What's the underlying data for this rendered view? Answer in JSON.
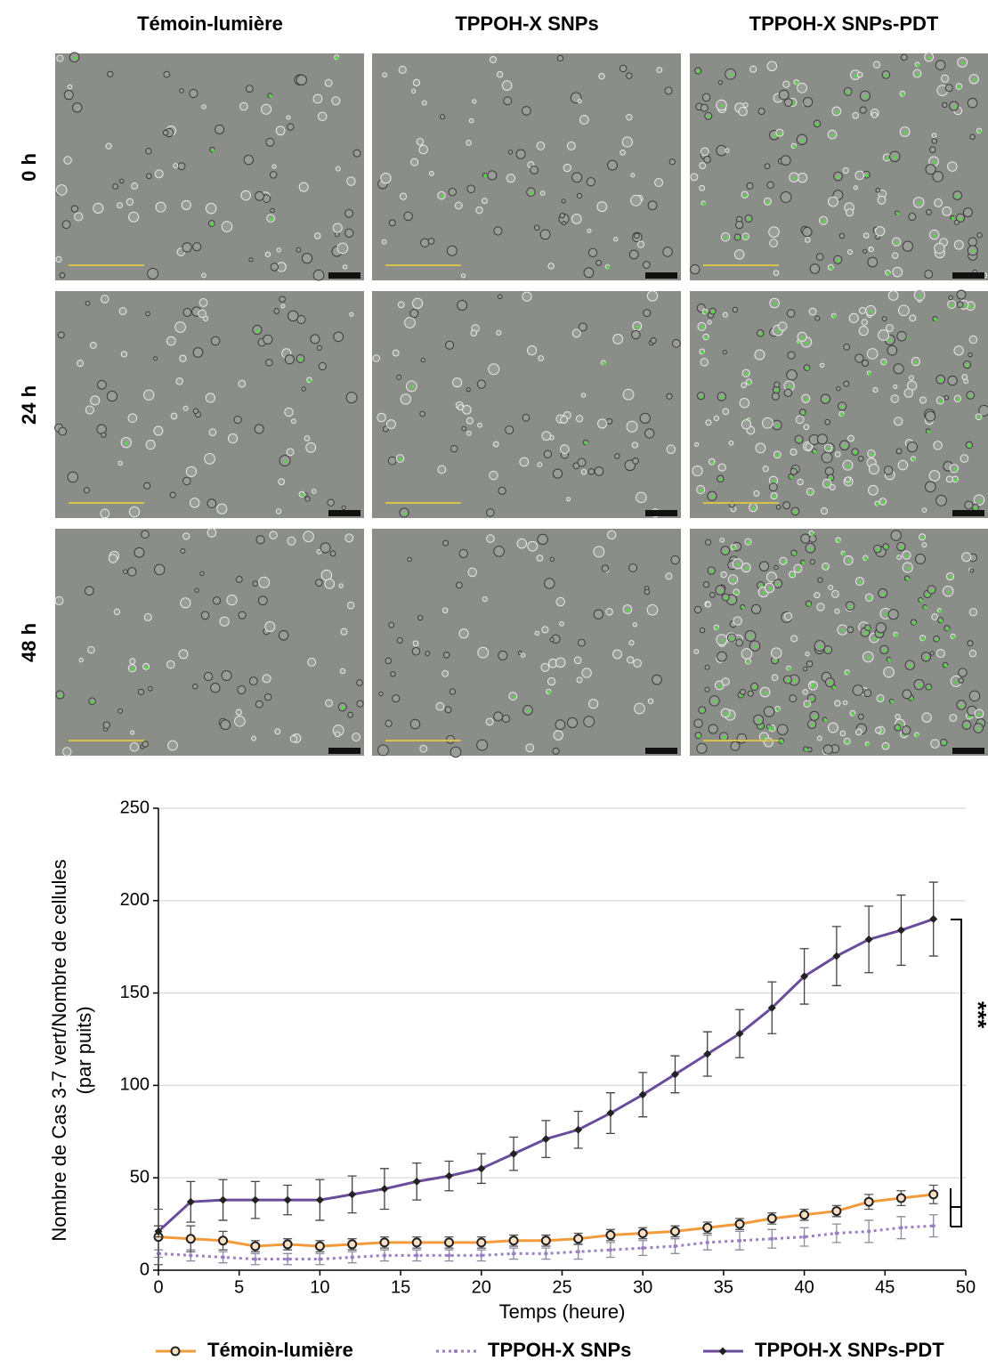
{
  "panels": {
    "columns": [
      "Témoin-lumière",
      "TPPOH-X SNPs",
      "TPPOH-X SNPs-PDT"
    ],
    "rows": [
      "0 h",
      "24 h",
      "48 h"
    ]
  },
  "chart_data": {
    "type": "line",
    "xlabel": "Temps (heure)",
    "ylabel": [
      "Nombre de Cas 3-7 vert/Nombre de cellules",
      "(par puits)"
    ],
    "x": [
      0,
      2,
      4,
      6,
      8,
      10,
      12,
      14,
      16,
      18,
      20,
      22,
      24,
      26,
      28,
      30,
      32,
      34,
      36,
      38,
      40,
      42,
      44,
      46,
      48
    ],
    "xlim": [
      0,
      50
    ],
    "xticks": [
      0,
      5,
      10,
      15,
      20,
      25,
      30,
      35,
      40,
      45,
      50
    ],
    "ylim": [
      0,
      250
    ],
    "yticks": [
      0,
      50,
      100,
      150,
      200,
      250
    ],
    "grid": true,
    "annotation": "***",
    "series": [
      {
        "name": "Témoin-lumière",
        "color": "#f39a3c",
        "marker": "circle",
        "dashed": false,
        "values": [
          18,
          17,
          16,
          13,
          14,
          13,
          14,
          15,
          15,
          15,
          15,
          16,
          16,
          17,
          19,
          20,
          21,
          23,
          25,
          28,
          30,
          32,
          37,
          39,
          41
        ],
        "errors": [
          15,
          7,
          5,
          3,
          3,
          3,
          3,
          3,
          3,
          3,
          3,
          3,
          3,
          3,
          3,
          3,
          3,
          3,
          3,
          3,
          3,
          3,
          4,
          4,
          5
        ]
      },
      {
        "name": "TPPOH-X SNPs",
        "color": "#9b7fc4",
        "marker": "dot",
        "dashed": true,
        "values": [
          9,
          8,
          7,
          6,
          6,
          6,
          7,
          8,
          8,
          8,
          8,
          9,
          9,
          10,
          11,
          12,
          13,
          15,
          16,
          17,
          18,
          20,
          21,
          23,
          24
        ],
        "errors": [
          2,
          3,
          3,
          3,
          3,
          3,
          3,
          3,
          3,
          3,
          3,
          3,
          3,
          4,
          4,
          4,
          4,
          4,
          5,
          5,
          5,
          5,
          6,
          6,
          6
        ]
      },
      {
        "name": "TPPOH-X SNPs-PDT",
        "color": "#6a4c9c",
        "marker": "diamond",
        "dashed": false,
        "values": [
          21,
          37,
          38,
          38,
          38,
          38,
          41,
          44,
          48,
          51,
          55,
          63,
          71,
          76,
          85,
          95,
          106,
          117,
          128,
          142,
          159,
          170,
          179,
          184,
          190
        ],
        "errors": [
          3,
          11,
          11,
          10,
          8,
          11,
          10,
          11,
          10,
          8,
          8,
          9,
          10,
          10,
          11,
          12,
          10,
          12,
          13,
          14,
          15,
          16,
          18,
          19,
          20
        ]
      }
    ]
  }
}
